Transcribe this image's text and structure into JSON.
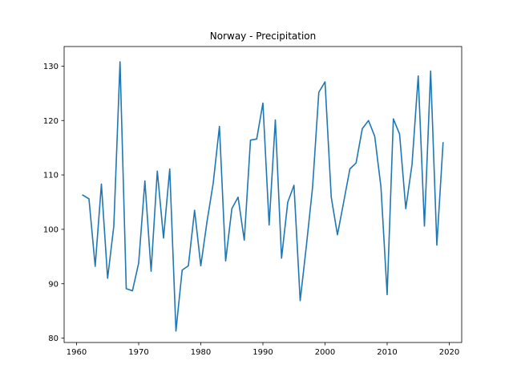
{
  "chart_data": {
    "type": "line",
    "title": "Norway - Precipitation",
    "xlabel": "",
    "ylabel": "",
    "xlim": [
      1958,
      2022
    ],
    "ylim": [
      79.2,
      133.6
    ],
    "xticks": [
      1960,
      1970,
      1980,
      1990,
      2000,
      2010,
      2020
    ],
    "yticks": [
      80,
      90,
      100,
      110,
      120,
      130
    ],
    "grid": false,
    "legend": "none",
    "series": [
      {
        "color": "#1f77b4",
        "x": [
          1961,
          1962,
          1963,
          1964,
          1965,
          1966,
          1967,
          1968,
          1969,
          1970,
          1971,
          1972,
          1973,
          1974,
          1975,
          1976,
          1977,
          1978,
          1979,
          1980,
          1981,
          1982,
          1983,
          1984,
          1985,
          1986,
          1987,
          1988,
          1989,
          1990,
          1991,
          1992,
          1993,
          1994,
          1995,
          1996,
          1997,
          1998,
          1999,
          2000,
          2001,
          2002,
          2003,
          2004,
          2005,
          2006,
          2007,
          2008,
          2009,
          2010,
          2011,
          2012,
          2013,
          2014,
          2015,
          2016,
          2017,
          2018,
          2019
        ],
        "values": [
          106.3,
          105.6,
          93.2,
          108.3,
          91.0,
          100.6,
          130.8,
          89.1,
          88.7,
          93.8,
          108.9,
          92.3,
          110.7,
          98.4,
          111.1,
          81.3,
          92.5,
          93.3,
          103.5,
          93.3,
          101.4,
          108.5,
          118.9,
          94.2,
          103.8,
          105.9,
          98.0,
          116.4,
          116.6,
          123.2,
          100.8,
          120.1,
          94.7,
          105.0,
          108.1,
          86.9,
          97.0,
          107.8,
          125.2,
          127.1,
          105.9,
          99.0,
          105.0,
          111.1,
          112.2,
          118.5,
          120.0,
          117.1,
          107.8,
          88.0,
          120.3,
          117.5,
          103.8,
          111.9,
          128.2,
          100.6,
          129.1,
          97.1,
          115.9
        ]
      }
    ]
  }
}
